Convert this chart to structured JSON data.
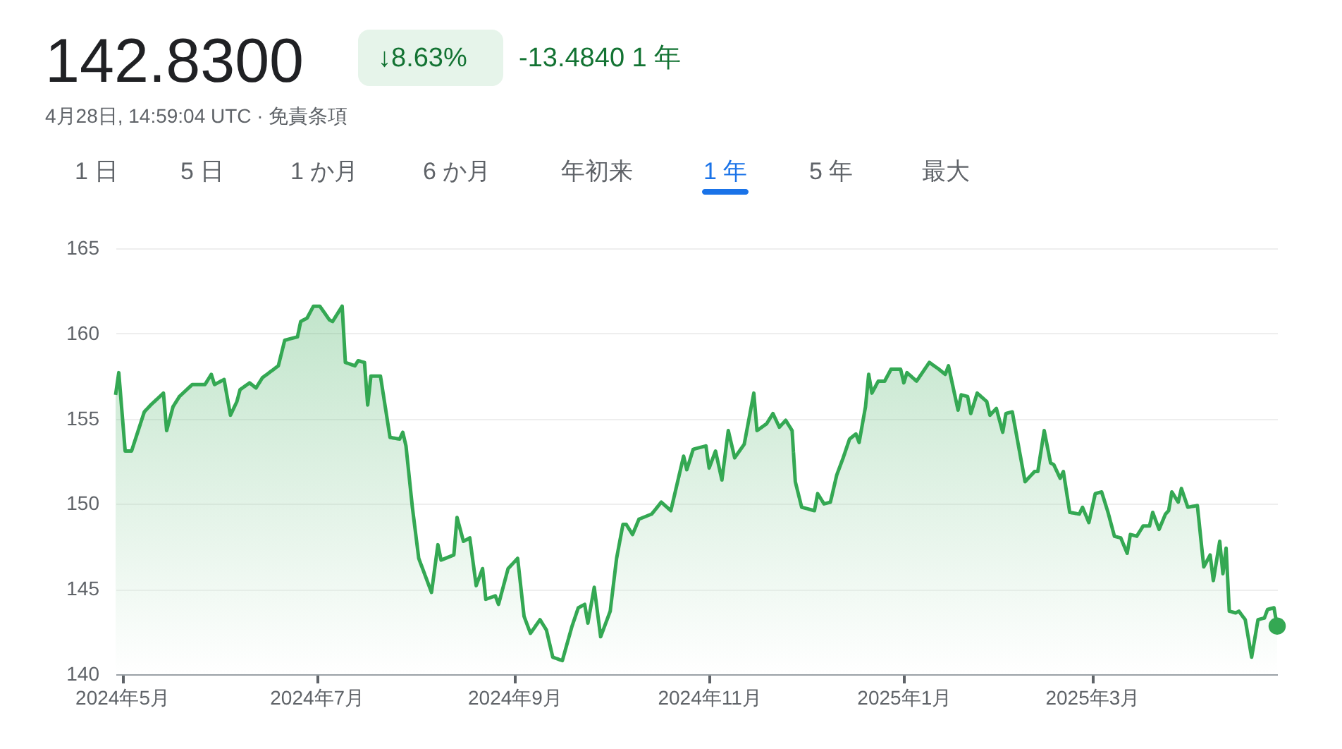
{
  "chart_data": {
    "type": "area",
    "title": "142.8300",
    "annotations": [
      "↓8.63%",
      "-13.4840 1 年",
      "4月28日, 14:59:04 UTC · 免責条項",
      "1 日",
      "5 日",
      "1 か月",
      "6 か月",
      "年初来",
      "1 年",
      "5 年",
      "最大"
    ],
    "xlim": [
      "2024-04-29",
      "2025-04-28"
    ],
    "xticks": [
      {
        "value": "2024-05-01",
        "label": "2024年5月"
      },
      {
        "value": "2024-07-01",
        "label": "2024年7月"
      },
      {
        "value": "2024-09-01",
        "label": "2024年9月"
      },
      {
        "value": "2024-11-01",
        "label": "2024年11月"
      },
      {
        "value": "2025-01-01",
        "label": "2025年1月"
      },
      {
        "value": "2025-03-01",
        "label": "2025年3月"
      }
    ],
    "ylim": [
      140,
      165
    ],
    "yticks": [
      140,
      145,
      150,
      155,
      160,
      165
    ],
    "grid": "y",
    "series": [
      {
        "color": "#34a853",
        "x": [
          "2024-04-29",
          "2024-04-30",
          "2024-05-02",
          "2024-05-04",
          "2024-05-08",
          "2024-05-10",
          "2024-05-14",
          "2024-05-15",
          "2024-05-17",
          "2024-05-19",
          "2024-05-23",
          "2024-05-27",
          "2024-05-29",
          "2024-05-30",
          "2024-06-02",
          "2024-06-04",
          "2024-06-06",
          "2024-06-07",
          "2024-06-10",
          "2024-06-12",
          "2024-06-14",
          "2024-06-19",
          "2024-06-21",
          "2024-06-25",
          "2024-06-26",
          "2024-06-28",
          "2024-06-30",
          "2024-07-02",
          "2024-07-05",
          "2024-07-06",
          "2024-07-09",
          "2024-07-10",
          "2024-07-13",
          "2024-07-14",
          "2024-07-16",
          "2024-07-17",
          "2024-07-18",
          "2024-07-21",
          "2024-07-24",
          "2024-07-27",
          "2024-07-28",
          "2024-07-29",
          "2024-07-31",
          "2024-08-02",
          "2024-08-04",
          "2024-08-06",
          "2024-08-08",
          "2024-08-09",
          "2024-08-13",
          "2024-08-14",
          "2024-08-16",
          "2024-08-18",
          "2024-08-20",
          "2024-08-22",
          "2024-08-23",
          "2024-08-26",
          "2024-08-27",
          "2024-08-30",
          "2024-09-02",
          "2024-09-04",
          "2024-09-06",
          "2024-09-09",
          "2024-09-11",
          "2024-09-13",
          "2024-09-16",
          "2024-09-19",
          "2024-09-21",
          "2024-09-23",
          "2024-09-24",
          "2024-09-26",
          "2024-09-28",
          "2024-10-01",
          "2024-10-03",
          "2024-10-05",
          "2024-10-06",
          "2024-10-08",
          "2024-10-10",
          "2024-10-14",
          "2024-10-17",
          "2024-10-20",
          "2024-10-24",
          "2024-10-25",
          "2024-10-27",
          "2024-10-31",
          "2024-11-01",
          "2024-11-03",
          "2024-11-05",
          "2024-11-07",
          "2024-11-09",
          "2024-11-12",
          "2024-11-15",
          "2024-11-16",
          "2024-11-19",
          "2024-11-21",
          "2024-11-23",
          "2024-11-25",
          "2024-11-27",
          "2024-11-28",
          "2024-11-30",
          "2024-12-04",
          "2024-12-05",
          "2024-12-07",
          "2024-12-09",
          "2024-12-11",
          "2024-12-13",
          "2024-12-15",
          "2024-12-17",
          "2024-12-18",
          "2024-12-20",
          "2024-12-21",
          "2024-12-22",
          "2024-12-24",
          "2024-12-26",
          "2024-12-28",
          "2024-12-31",
          "2025-01-01",
          "2025-01-02",
          "2025-01-05",
          "2025-01-09",
          "2025-01-12",
          "2025-01-14",
          "2025-01-15",
          "2025-01-18",
          "2025-01-19",
          "2025-01-21",
          "2025-01-22",
          "2025-01-24",
          "2025-01-27",
          "2025-01-28",
          "2025-01-30",
          "2025-02-01",
          "2025-02-02",
          "2025-02-04",
          "2025-02-08",
          "2025-02-11",
          "2025-02-12",
          "2025-02-14",
          "2025-02-16",
          "2025-02-17",
          "2025-02-19",
          "2025-02-20",
          "2025-02-22",
          "2025-02-25",
          "2025-02-26",
          "2025-02-28",
          "2025-03-02",
          "2025-03-04",
          "2025-03-06",
          "2025-03-08",
          "2025-03-10",
          "2025-03-12",
          "2025-03-13",
          "2025-03-15",
          "2025-03-17",
          "2025-03-19",
          "2025-03-20",
          "2025-03-22",
          "2025-03-24",
          "2025-03-25",
          "2025-03-26",
          "2025-03-28",
          "2025-03-29",
          "2025-03-31",
          "2025-04-03",
          "2025-04-05",
          "2025-04-07",
          "2025-04-08",
          "2025-04-10",
          "2025-04-11",
          "2025-04-12",
          "2025-04-13",
          "2025-04-15",
          "2025-04-16",
          "2025-04-18",
          "2025-04-19",
          "2025-04-20",
          "2025-04-22",
          "2025-04-24",
          "2025-04-25",
          "2025-04-27",
          "2025-04-28"
        ],
        "values": [
          156.4,
          157.7,
          153.1,
          153.1,
          155.4,
          155.8,
          156.5,
          154.3,
          155.7,
          156.3,
          157.0,
          157.0,
          157.6,
          157.0,
          157.3,
          155.2,
          156.0,
          156.7,
          157.1,
          156.8,
          157.4,
          158.1,
          159.6,
          159.8,
          160.7,
          160.9,
          161.6,
          161.6,
          160.8,
          160.7,
          161.6,
          158.3,
          158.1,
          158.4,
          158.3,
          155.8,
          157.5,
          157.5,
          153.9,
          153.8,
          154.2,
          153.4,
          149.8,
          146.8,
          145.8,
          144.8,
          147.6,
          146.7,
          147.0,
          149.2,
          147.8,
          148.0,
          145.2,
          146.2,
          144.4,
          144.6,
          144.1,
          146.2,
          146.8,
          143.4,
          142.4,
          143.2,
          142.6,
          141.0,
          140.8,
          142.8,
          143.9,
          144.1,
          143.0,
          145.1,
          142.2,
          143.7,
          146.8,
          148.8,
          148.8,
          148.2,
          149.1,
          149.4,
          150.1,
          149.6,
          152.8,
          152.0,
          153.2,
          153.4,
          152.1,
          153.1,
          151.4,
          154.3,
          152.7,
          153.5,
          156.5,
          154.3,
          154.7,
          155.3,
          154.5,
          154.9,
          154.3,
          151.3,
          149.8,
          149.6,
          150.6,
          150.0,
          150.1,
          151.7,
          152.7,
          153.8,
          154.1,
          153.6,
          155.7,
          157.6,
          156.5,
          157.2,
          157.2,
          157.9,
          157.9,
          157.1,
          157.7,
          157.2,
          158.3,
          157.9,
          157.6,
          158.1,
          155.5,
          156.4,
          156.3,
          155.3,
          156.5,
          156.0,
          155.2,
          155.6,
          154.2,
          155.3,
          155.4,
          151.3,
          151.9,
          151.9,
          154.3,
          152.4,
          152.3,
          151.5,
          151.9,
          149.5,
          149.4,
          149.8,
          148.9,
          150.6,
          150.7,
          149.5,
          148.1,
          148.0,
          147.1,
          148.2,
          148.1,
          148.7,
          148.7,
          149.5,
          148.5,
          149.4,
          149.6,
          150.7,
          150.1,
          150.9,
          149.8,
          149.9,
          146.3,
          147.0,
          145.5,
          147.8,
          145.9,
          147.4,
          143.7,
          143.6,
          143.7,
          143.2,
          142.1,
          141.0,
          143.2,
          143.3,
          143.8,
          143.9,
          142.83
        ]
      },
      {
        "type": "scatter",
        "marker": "circle",
        "color": "#34a853",
        "x": [
          "2025-04-28"
        ],
        "values": [
          142.83
        ]
      }
    ]
  }
}
